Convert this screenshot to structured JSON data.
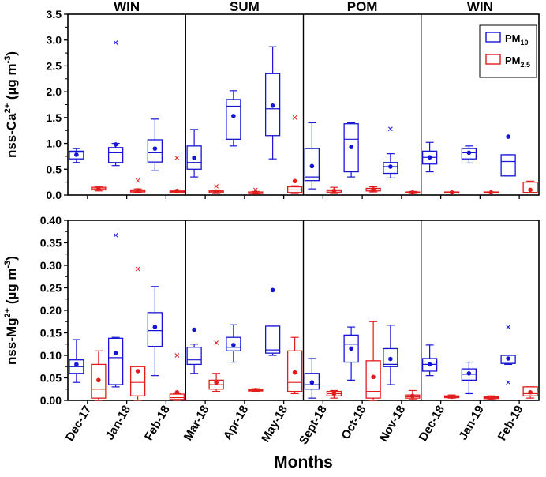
{
  "chart_data": {
    "type": "boxplot",
    "xlabel": "Months",
    "categories": [
      "Dec-17",
      "Jan-18",
      "Feb-18",
      "Mar-18",
      "Apr-18",
      "May-18",
      "Sept-18",
      "Oct-18",
      "Nov-18",
      "Dec-18",
      "Jan-19",
      "Feb-19"
    ],
    "seasons": [
      {
        "label": "WIN",
        "start": 0,
        "end": 2
      },
      {
        "label": "SUM",
        "start": 3,
        "end": 5
      },
      {
        "label": "POM",
        "start": 6,
        "end": 8
      },
      {
        "label": "WIN",
        "start": 9,
        "end": 11
      }
    ],
    "legend": [
      {
        "main": "PM",
        "sub": "10",
        "color": "#1515d6"
      },
      {
        "main": "PM",
        "sub": "2.5",
        "color": "#e11c1c"
      }
    ],
    "colors": {
      "pm10": "#1515d6",
      "pm25": "#e11c1c",
      "axis": "#000000"
    },
    "panels": [
      {
        "name": "ca",
        "ylabel_main": "nss-Ca",
        "ylabel_sup": "2+",
        "ylabel_unit_a": "(µg m",
        "ylabel_unit_sup": "-3",
        "ylabel_unit_b": ")",
        "ylim": [
          0,
          3.5
        ],
        "yticks": [
          "0.0",
          "0.5",
          "1.0",
          "1.5",
          "2.0",
          "2.5",
          "3.0",
          "3.5"
        ],
        "pm10": [
          {
            "min": 0.63,
            "q1": 0.7,
            "median": 0.83,
            "q3": 0.85,
            "max": 0.9,
            "mean": 0.78,
            "outliers": []
          },
          {
            "min": 0.57,
            "q1": 0.63,
            "median": 0.82,
            "q3": 0.92,
            "max": 1.0,
            "mean": 0.98,
            "outliers": [
              2.95
            ]
          },
          {
            "min": 0.47,
            "q1": 0.64,
            "median": 0.82,
            "q3": 1.07,
            "max": 1.47,
            "mean": 0.9,
            "outliers": []
          },
          {
            "min": 0.35,
            "q1": 0.5,
            "median": 0.63,
            "q3": 0.95,
            "max": 1.27,
            "mean": 0.72,
            "outliers": []
          },
          {
            "min": 0.95,
            "q1": 1.08,
            "median": 1.72,
            "q3": 1.85,
            "max": 2.02,
            "mean": 1.53,
            "outliers": []
          },
          {
            "min": 0.7,
            "q1": 1.15,
            "median": 1.67,
            "q3": 2.35,
            "max": 2.87,
            "mean": 1.73,
            "outliers": []
          },
          {
            "min": 0.12,
            "q1": 0.28,
            "median": 0.35,
            "q3": 0.9,
            "max": 1.4,
            "mean": 0.56,
            "outliers": []
          },
          {
            "min": 0.35,
            "q1": 0.45,
            "median": 1.08,
            "q3": 1.38,
            "max": 1.4,
            "mean": 0.93,
            "outliers": []
          },
          {
            "min": 0.33,
            "q1": 0.42,
            "median": 0.55,
            "q3": 0.63,
            "max": 0.8,
            "mean": 0.55,
            "outliers": [
              1.28
            ]
          },
          {
            "min": 0.45,
            "q1": 0.6,
            "median": 0.73,
            "q3": 0.85,
            "max": 1.02,
            "mean": 0.73,
            "outliers": []
          },
          {
            "min": 0.62,
            "q1": 0.7,
            "median": 0.82,
            "q3": 0.9,
            "max": 0.95,
            "mean": 0.82,
            "outliers": []
          },
          {
            "min": 0.37,
            "q1": 0.37,
            "median": 0.65,
            "q3": 0.78,
            "max": 0.78,
            "mean": 1.13,
            "outliers": []
          }
        ],
        "pm25": [
          {
            "min": 0.08,
            "q1": 0.1,
            "median": 0.12,
            "q3": 0.15,
            "max": 0.17,
            "mean": 0.12,
            "outliers": []
          },
          {
            "min": 0.05,
            "q1": 0.06,
            "median": 0.08,
            "q3": 0.1,
            "max": 0.12,
            "mean": 0.09,
            "outliers": [
              0.28
            ]
          },
          {
            "min": 0.04,
            "q1": 0.05,
            "median": 0.07,
            "q3": 0.09,
            "max": 0.1,
            "mean": 0.08,
            "outliers": [
              0.72
            ]
          },
          {
            "min": 0.03,
            "q1": 0.04,
            "median": 0.06,
            "q3": 0.08,
            "max": 0.09,
            "mean": 0.07,
            "outliers": [
              0.17
            ]
          },
          {
            "min": 0.02,
            "q1": 0.03,
            "median": 0.04,
            "q3": 0.06,
            "max": 0.07,
            "mean": 0.05,
            "outliers": [
              0.1
            ]
          },
          {
            "min": 0.03,
            "q1": 0.05,
            "median": 0.1,
            "q3": 0.16,
            "max": 0.18,
            "mean": 0.27,
            "outliers": [
              1.5
            ]
          },
          {
            "min": 0.03,
            "q1": 0.05,
            "median": 0.08,
            "q3": 0.1,
            "max": 0.15,
            "mean": 0.08,
            "outliers": []
          },
          {
            "min": 0.06,
            "q1": 0.08,
            "median": 0.1,
            "q3": 0.13,
            "max": 0.16,
            "mean": 0.11,
            "outliers": []
          },
          {
            "min": 0.03,
            "q1": 0.04,
            "median": 0.05,
            "q3": 0.06,
            "max": 0.07,
            "mean": 0.05,
            "outliers": []
          },
          {
            "min": 0.04,
            "q1": 0.04,
            "median": 0.05,
            "q3": 0.06,
            "max": 0.06,
            "mean": 0.05,
            "outliers": []
          },
          {
            "min": 0.04,
            "q1": 0.04,
            "median": 0.05,
            "q3": 0.06,
            "max": 0.06,
            "mean": 0.05,
            "outliers": []
          },
          {
            "min": 0.04,
            "q1": 0.05,
            "median": 0.05,
            "q3": 0.25,
            "max": 0.27,
            "mean": 0.1,
            "outliers": []
          }
        ]
      },
      {
        "name": "mg",
        "ylabel_main": "nss-Mg",
        "ylabel_sup": "2+",
        "ylabel_unit_a": "(µg m",
        "ylabel_unit_sup": "-3",
        "ylabel_unit_b": ")",
        "ylim": [
          0,
          0.4
        ],
        "yticks": [
          "0.00",
          "0.05",
          "0.10",
          "0.15",
          "0.20",
          "0.25",
          "0.30",
          "0.35",
          "0.40"
        ],
        "pm10": [
          {
            "min": 0.04,
            "q1": 0.06,
            "median": 0.075,
            "q3": 0.09,
            "max": 0.135,
            "mean": 0.08,
            "outliers": []
          },
          {
            "min": 0.03,
            "q1": 0.035,
            "median": 0.095,
            "q3": 0.138,
            "max": 0.14,
            "mean": 0.105,
            "outliers": [
              0.367
            ]
          },
          {
            "min": 0.055,
            "q1": 0.12,
            "median": 0.155,
            "q3": 0.195,
            "max": 0.253,
            "mean": 0.163,
            "outliers": []
          },
          {
            "min": 0.06,
            "q1": 0.08,
            "median": 0.09,
            "q3": 0.118,
            "max": 0.125,
            "mean": 0.157,
            "outliers": []
          },
          {
            "min": 0.085,
            "q1": 0.11,
            "median": 0.118,
            "q3": 0.14,
            "max": 0.168,
            "mean": 0.123,
            "outliers": []
          },
          {
            "min": 0.1,
            "q1": 0.105,
            "median": 0.112,
            "q3": 0.165,
            "max": 0.165,
            "mean": 0.245,
            "outliers": []
          },
          {
            "min": 0.005,
            "q1": 0.025,
            "median": 0.035,
            "q3": 0.06,
            "max": 0.093,
            "mean": 0.04,
            "outliers": []
          },
          {
            "min": 0.045,
            "q1": 0.085,
            "median": 0.125,
            "q3": 0.145,
            "max": 0.163,
            "mean": 0.115,
            "outliers": []
          },
          {
            "min": 0.035,
            "q1": 0.075,
            "median": 0.08,
            "q3": 0.115,
            "max": 0.167,
            "mean": 0.092,
            "outliers": []
          },
          {
            "min": 0.055,
            "q1": 0.065,
            "median": 0.08,
            "q3": 0.093,
            "max": 0.123,
            "mean": 0.08,
            "outliers": []
          },
          {
            "min": 0.015,
            "q1": 0.045,
            "median": 0.058,
            "q3": 0.07,
            "max": 0.085,
            "mean": 0.06,
            "outliers": []
          },
          {
            "min": 0.08,
            "q1": 0.082,
            "median": 0.085,
            "q3": 0.1,
            "max": 0.1,
            "mean": 0.093,
            "outliers": [
              0.163,
              0.04
            ]
          }
        ],
        "pm25": [
          {
            "min": 0.0,
            "q1": 0.005,
            "median": 0.025,
            "q3": 0.08,
            "max": 0.11,
            "mean": 0.045,
            "outliers": []
          },
          {
            "min": 0.0,
            "q1": 0.01,
            "median": 0.04,
            "q3": 0.075,
            "max": 0.075,
            "mean": 0.065,
            "outliers": [
              0.292
            ]
          },
          {
            "min": 0.0,
            "q1": 0.002,
            "median": 0.006,
            "q3": 0.014,
            "max": 0.015,
            "mean": 0.018,
            "outliers": [
              0.1
            ]
          },
          {
            "min": 0.02,
            "q1": 0.025,
            "median": 0.035,
            "q3": 0.045,
            "max": 0.06,
            "mean": 0.04,
            "outliers": [
              0.128
            ]
          },
          {
            "min": 0.02,
            "q1": 0.021,
            "median": 0.023,
            "q3": 0.025,
            "max": 0.026,
            "mean": 0.023,
            "outliers": []
          },
          {
            "min": 0.015,
            "q1": 0.02,
            "median": 0.04,
            "q3": 0.11,
            "max": 0.14,
            "mean": 0.062,
            "outliers": []
          },
          {
            "min": 0.005,
            "q1": 0.01,
            "median": 0.015,
            "q3": 0.02,
            "max": 0.022,
            "mean": 0.015,
            "outliers": []
          },
          {
            "min": 0.0,
            "q1": 0.005,
            "median": 0.02,
            "q3": 0.088,
            "max": 0.175,
            "mean": 0.052,
            "outliers": []
          },
          {
            "min": 0.002,
            "q1": 0.005,
            "median": 0.008,
            "q3": 0.012,
            "max": 0.022,
            "mean": 0.01,
            "outliers": []
          },
          {
            "min": 0.005,
            "q1": 0.006,
            "median": 0.008,
            "q3": 0.01,
            "max": 0.012,
            "mean": 0.008,
            "outliers": []
          },
          {
            "min": 0.003,
            "q1": 0.004,
            "median": 0.006,
            "q3": 0.008,
            "max": 0.01,
            "mean": 0.006,
            "outliers": []
          },
          {
            "min": 0.005,
            "q1": 0.01,
            "median": 0.015,
            "q3": 0.03,
            "max": 0.03,
            "mean": 0.018,
            "outliers": []
          }
        ]
      }
    ]
  }
}
